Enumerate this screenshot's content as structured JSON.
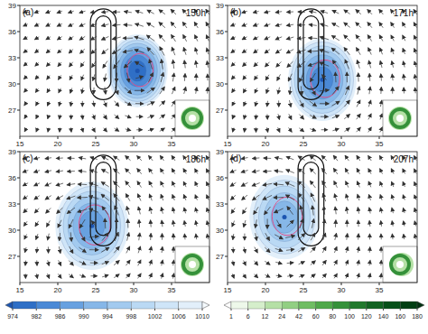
{
  "chart_data": {
    "type": "cyclone_panels",
    "xlim": [
      15,
      40
    ],
    "xticks": [
      15,
      20,
      25,
      30,
      35
    ],
    "ylim": [
      24,
      39
    ],
    "yticks": [
      27,
      30,
      33,
      36,
      39
    ],
    "forcing_contours": [
      {
        "x": [
          24.3,
          27.7
        ],
        "y": [
          28.2,
          38.6
        ]
      },
      {
        "x": [
          25.0,
          27.0
        ],
        "y": [
          29.4,
          37.8
        ]
      }
    ],
    "panels": [
      {
        "label": "(a)",
        "time": "150h",
        "center": [
          30.5,
          31.5
        ],
        "min_pressure": 978,
        "radius": 3.8
      },
      {
        "label": "(b)",
        "time": "171h",
        "center": [
          27.5,
          30.5
        ],
        "min_pressure": 982,
        "radius": 4.3
      },
      {
        "label": "(c)",
        "time": "186h",
        "center": [
          24.5,
          30.5
        ],
        "min_pressure": 986,
        "radius": 4.6
      },
      {
        "label": "(d)",
        "time": "207h",
        "center": [
          22.5,
          31.5
        ],
        "min_pressure": 990,
        "radius": 4.4
      }
    ],
    "pressure_colorbar": {
      "ticks": [
        974,
        982,
        986,
        990,
        994,
        998,
        1002,
        1006,
        1010
      ],
      "colors": [
        "#1d55b0",
        "#2f6fc6",
        "#4a89d6",
        "#68a1e0",
        "#86b7e8",
        "#a2caef",
        "#bad9f4",
        "#cfe5f8",
        "#e2effa",
        "#f5fafe"
      ]
    },
    "precip_colorbar": {
      "ticks": [
        1,
        6,
        12,
        24,
        42,
        60,
        80,
        100,
        120,
        140,
        160,
        180
      ],
      "colors": [
        "#ffffff",
        "#eef8ea",
        "#d5eecb",
        "#b5e0a6",
        "#92cf83",
        "#6fbd63",
        "#4fa84a",
        "#35913a",
        "#21792d",
        "#126322",
        "#07501a",
        "#023f14",
        "#003010"
      ]
    }
  }
}
